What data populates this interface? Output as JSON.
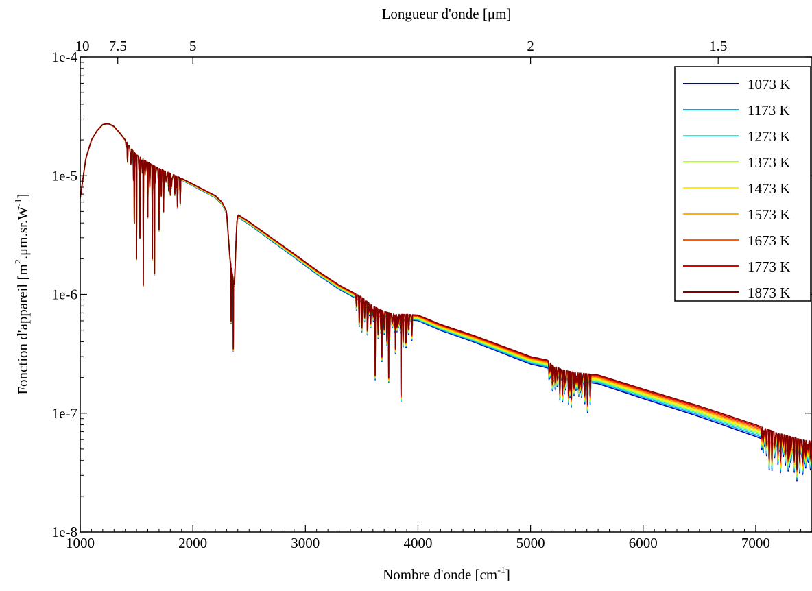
{
  "chart_data": {
    "type": "line",
    "xlabel_main": "Nombre d'onde [cm",
    "xlabel_sup": "-1",
    "xlabel_end": "]",
    "x2label": "Longueur d'onde [μm]",
    "ylabel_pre": "Fonction d'appareil [m",
    "ylabel_sup1": "2",
    "ylabel_mid": ".μm.sr.W",
    "ylabel_sup2": "-1",
    "ylabel_end": "]",
    "xlim": [
      1000,
      7500
    ],
    "ylim": [
      1e-08,
      0.0001
    ],
    "yscale": "log",
    "xticks": [
      1000,
      2000,
      3000,
      4000,
      5000,
      6000,
      7000
    ],
    "xtick_labels": [
      "1000",
      "2000",
      "3000",
      "4000",
      "5000",
      "6000",
      "7000"
    ],
    "yticks": [
      1e-08,
      1e-07,
      1e-06,
      1e-05,
      0.0001
    ],
    "ytick_labels": [
      "1e-8",
      "1e-7",
      "1e-6",
      "1e-5",
      "1e-4"
    ],
    "x2ticks_um": [
      10,
      7.5,
      5,
      2,
      1.5
    ],
    "x2tick_labels": [
      "10",
      "7.5",
      "5",
      "2",
      "1.5"
    ],
    "legend_position": "top-right",
    "grid": false,
    "colors": [
      "#0000aa",
      "#00a5ff",
      "#33eebb",
      "#aaff33",
      "#ffee00",
      "#ffb000",
      "#ff5a00",
      "#dd0000",
      "#800000"
    ],
    "series": [
      {
        "name": "1073 K",
        "color": "#0000aa"
      },
      {
        "name": "1173 K",
        "color": "#00a5ff"
      },
      {
        "name": "1273 K",
        "color": "#33eebb"
      },
      {
        "name": "1373 K",
        "color": "#aaff33"
      },
      {
        "name": "1473 K",
        "color": "#ffee00"
      },
      {
        "name": "1573 K",
        "color": "#ffb000"
      },
      {
        "name": "1673 K",
        "color": "#ff5a00"
      },
      {
        "name": "1773 K",
        "color": "#dd0000"
      },
      {
        "name": "1873 K",
        "color": "#800000"
      }
    ],
    "reference_curve": {
      "description_free": true,
      "x": [
        1000,
        1050,
        1100,
        1150,
        1200,
        1250,
        1300,
        1350,
        1400,
        1450,
        1500,
        1600,
        1700,
        1800,
        1900,
        2000,
        2100,
        2200,
        2260,
        2300,
        2330,
        2350,
        2370,
        2390,
        2400,
        2500,
        2700,
        2900,
        3100,
        3300,
        3500,
        3600,
        3700,
        3800,
        3900,
        4000,
        4200,
        4500,
        5000,
        5150,
        5200,
        5300,
        5400,
        5500,
        5600,
        6000,
        6500,
        7000,
        7200,
        7300,
        7400,
        7500
      ],
      "y": [
        6.5e-06,
        1.4e-05,
        2e-05,
        2.4e-05,
        2.7e-05,
        2.75e-05,
        2.6e-05,
        2.3e-05,
        2e-05,
        1.7e-05,
        1.5e-05,
        1.3e-05,
        1.15e-05,
        1.05e-05,
        9.5e-06,
        8.5e-06,
        7.6e-06,
        6.8e-06,
        6e-06,
        5e-06,
        2e-06,
        1.5e-06,
        1.2e-06,
        4e-06,
        4.7e-06,
        4.1e-06,
        3e-06,
        2.2e-06,
        1.6e-06,
        1.2e-06,
        9.5e-07,
        8e-07,
        7.2e-07,
        6.8e-07,
        6.8e-07,
        6.7e-07,
        5.6e-07,
        4.5e-07,
        3e-07,
        2.8e-07,
        2.5e-07,
        2.3e-07,
        2.2e-07,
        2.15e-07,
        2.1e-07,
        1.6e-07,
        1.15e-07,
        8e-08,
        6.8e-08,
        6.4e-08,
        6e-08,
        5.8e-08
      ],
      "absorption_dips": [
        {
          "x": 1480,
          "y": 4e-06
        },
        {
          "x": 1500,
          "y": 2e-06
        },
        {
          "x": 1530,
          "y": 3e-06
        },
        {
          "x": 1560,
          "y": 1.2e-06
        },
        {
          "x": 1600,
          "y": 4.5e-06
        },
        {
          "x": 1640,
          "y": 2e-06
        },
        {
          "x": 1660,
          "y": 1.5e-06
        },
        {
          "x": 1700,
          "y": 3.5e-06
        },
        {
          "x": 1740,
          "y": 5e-06
        },
        {
          "x": 1800,
          "y": 7e-06
        },
        {
          "x": 1850,
          "y": 8e-06
        },
        {
          "x": 2340,
          "y": 6e-07
        },
        {
          "x": 2360,
          "y": 3.5e-07
        },
        {
          "x": 3550,
          "y": 5e-07
        },
        {
          "x": 3620,
          "y": 2.1e-07
        },
        {
          "x": 3680,
          "y": 3e-07
        },
        {
          "x": 3740,
          "y": 2e-07
        },
        {
          "x": 3800,
          "y": 3.5e-07
        },
        {
          "x": 3850,
          "y": 1.4e-07
        },
        {
          "x": 3900,
          "y": 4e-07
        },
        {
          "x": 5200,
          "y": 1.9e-07
        },
        {
          "x": 5300,
          "y": 1.7e-07
        },
        {
          "x": 5350,
          "y": 1.6e-07
        },
        {
          "x": 5450,
          "y": 1.7e-07
        },
        {
          "x": 7220,
          "y": 4e-08
        },
        {
          "x": 7300,
          "y": 4.5e-08
        },
        {
          "x": 7420,
          "y": 4.2e-08
        }
      ],
      "low_temp_ratio": 0.78
    }
  }
}
